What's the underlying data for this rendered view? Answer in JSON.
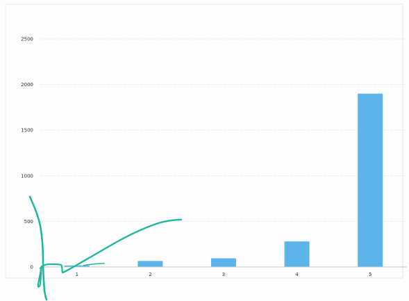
{
  "chart_data": {
    "type": "bar",
    "title": "",
    "xlabel": "",
    "ylabel": "",
    "categories": [
      "1",
      "2",
      "3",
      "4",
      "5"
    ],
    "values": [
      15,
      65,
      95,
      280,
      1900
    ],
    "ylim": [
      0,
      2500
    ],
    "yticks": [
      "0",
      "500",
      "1000",
      "1500",
      "2000",
      "2500"
    ],
    "grid": true,
    "legend": "none",
    "bar_color": "#5db4ea"
  },
  "annotation": {
    "kind": "hand-drawn pen stroke",
    "color": "#1fb89a"
  }
}
